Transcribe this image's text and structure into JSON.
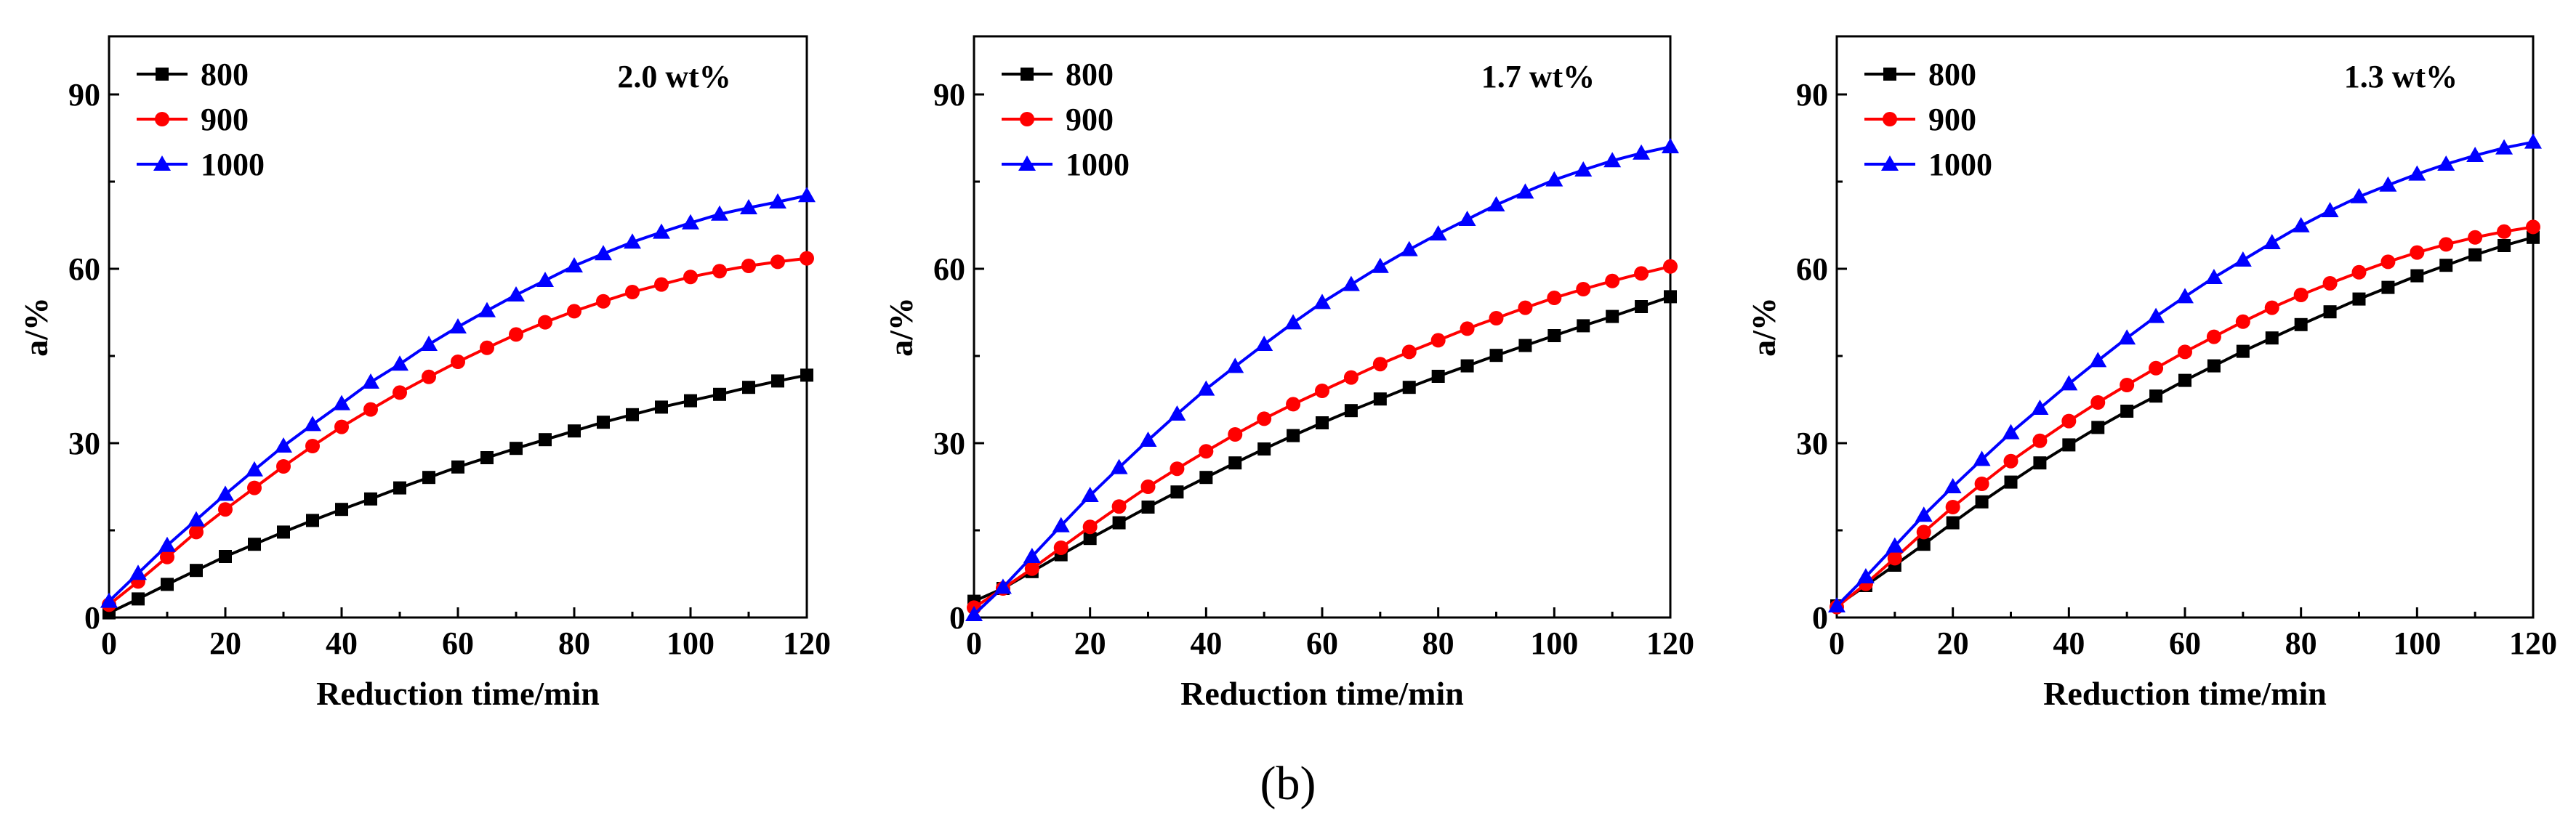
{
  "figure": {
    "caption": "(b)",
    "colors": {
      "800": "#000000",
      "900": "#ff0000",
      "1000": "#0000ff"
    },
    "markers": {
      "800": "square-icon",
      "900": "circle-icon",
      "1000": "triangle-icon"
    }
  },
  "chart_data": [
    {
      "type": "line",
      "title": "",
      "annotation": "2.0 wt%",
      "xlabel": "Reduction time/min",
      "ylabel": "a/%",
      "xlim": [
        0,
        120
      ],
      "ylim": [
        0,
        100
      ],
      "xticks": [
        "0",
        "20",
        "40",
        "60",
        "80",
        "100",
        "120"
      ],
      "yticks": [
        "0",
        "30",
        "60",
        "90"
      ],
      "grid": false,
      "legend_position": "top-left",
      "x": [
        0,
        5,
        10,
        15,
        20,
        25,
        30,
        35,
        40,
        45,
        50,
        55,
        60,
        65,
        70,
        75,
        80,
        85,
        90,
        95,
        100,
        105,
        110,
        115,
        120
      ],
      "series": [
        {
          "name": "800",
          "values": [
            0.8,
            3.2,
            5.7,
            8.1,
            10.5,
            12.6,
            14.7,
            16.7,
            18.6,
            20.4,
            22.3,
            24.1,
            25.9,
            27.5,
            29.1,
            30.6,
            32.1,
            33.6,
            34.9,
            36.2,
            37.3,
            38.4,
            39.6,
            40.7,
            41.7
          ]
        },
        {
          "name": "900",
          "values": [
            2.2,
            6.2,
            10.4,
            14.7,
            18.6,
            22.3,
            26.0,
            29.5,
            32.8,
            35.8,
            38.7,
            41.4,
            44.0,
            46.4,
            48.7,
            50.8,
            52.7,
            54.4,
            56.0,
            57.3,
            58.6,
            59.6,
            60.5,
            61.2,
            61.8
          ]
        },
        {
          "name": "1000",
          "values": [
            2.8,
            7.6,
            12.4,
            16.8,
            21.2,
            25.4,
            29.5,
            33.2,
            36.8,
            40.5,
            43.6,
            47.0,
            50.0,
            52.8,
            55.5,
            58.0,
            60.5,
            62.6,
            64.6,
            66.3,
            67.9,
            69.4,
            70.5,
            71.5,
            72.6
          ]
        }
      ]
    },
    {
      "type": "line",
      "title": "",
      "annotation": "1.7 wt%",
      "xlabel": "Reduction time/min",
      "ylabel": "a/%",
      "xlim": [
        0,
        120
      ],
      "ylim": [
        0,
        100
      ],
      "xticks": [
        "0",
        "20",
        "40",
        "60",
        "80",
        "100",
        "120"
      ],
      "yticks": [
        "0",
        "30",
        "60",
        "90"
      ],
      "grid": false,
      "legend_position": "top-left",
      "x": [
        0,
        5,
        10,
        15,
        20,
        25,
        30,
        35,
        40,
        45,
        50,
        55,
        60,
        65,
        70,
        75,
        80,
        85,
        90,
        95,
        100,
        105,
        110,
        115,
        120
      ],
      "series": [
        {
          "name": "800",
          "values": [
            2.8,
            5.0,
            7.9,
            10.8,
            13.6,
            16.3,
            19.0,
            21.6,
            24.1,
            26.6,
            29.0,
            31.3,
            33.5,
            35.6,
            37.6,
            39.6,
            41.5,
            43.3,
            45.1,
            46.8,
            48.5,
            50.2,
            51.8,
            53.5,
            55.2
          ]
        },
        {
          "name": "900",
          "values": [
            1.7,
            5.0,
            8.4,
            12.0,
            15.6,
            19.1,
            22.5,
            25.6,
            28.6,
            31.5,
            34.2,
            36.7,
            39.0,
            41.3,
            43.6,
            45.7,
            47.7,
            49.7,
            51.5,
            53.3,
            55.0,
            56.5,
            57.9,
            59.2,
            60.4
          ]
        },
        {
          "name": "1000",
          "values": [
            0.5,
            5.2,
            10.5,
            15.8,
            21.0,
            25.8,
            30.5,
            35.0,
            39.3,
            43.2,
            47.0,
            50.7,
            54.2,
            57.3,
            60.4,
            63.3,
            66.0,
            68.5,
            71.0,
            73.2,
            75.3,
            77.0,
            78.6,
            79.9,
            81.0
          ]
        }
      ]
    },
    {
      "type": "line",
      "title": "",
      "annotation": "1.3 wt%",
      "xlabel": "Reduction time/min",
      "ylabel": "a/%",
      "xlim": [
        0,
        120
      ],
      "ylim": [
        0,
        100
      ],
      "xticks": [
        "0",
        "20",
        "40",
        "60",
        "80",
        "100",
        "120"
      ],
      "yticks": [
        "0",
        "30",
        "60",
        "90"
      ],
      "grid": false,
      "legend_position": "top-left",
      "x": [
        0,
        5,
        10,
        15,
        20,
        25,
        30,
        35,
        40,
        45,
        50,
        55,
        60,
        65,
        70,
        75,
        80,
        85,
        90,
        95,
        100,
        105,
        110,
        115,
        120
      ],
      "series": [
        {
          "name": "800",
          "values": [
            2.0,
            5.5,
            9.0,
            12.6,
            16.3,
            19.9,
            23.3,
            26.6,
            29.7,
            32.7,
            35.5,
            38.1,
            40.8,
            43.3,
            45.8,
            48.1,
            50.4,
            52.6,
            54.8,
            56.8,
            58.8,
            60.6,
            62.4,
            64.0,
            65.4
          ]
        },
        {
          "name": "900",
          "values": [
            1.8,
            5.8,
            10.2,
            14.7,
            19.0,
            23.0,
            26.9,
            30.4,
            33.8,
            37.0,
            40.0,
            42.9,
            45.7,
            48.3,
            50.9,
            53.3,
            55.5,
            57.5,
            59.4,
            61.2,
            62.8,
            64.2,
            65.4,
            66.4,
            67.2
          ]
        },
        {
          "name": "1000",
          "values": [
            2.0,
            7.0,
            12.3,
            17.6,
            22.5,
            27.2,
            31.8,
            36.0,
            40.2,
            44.2,
            48.1,
            51.8,
            55.2,
            58.5,
            61.5,
            64.5,
            67.4,
            70.0,
            72.4,
            74.4,
            76.3,
            78.0,
            79.5,
            80.8,
            81.8
          ]
        }
      ]
    }
  ]
}
